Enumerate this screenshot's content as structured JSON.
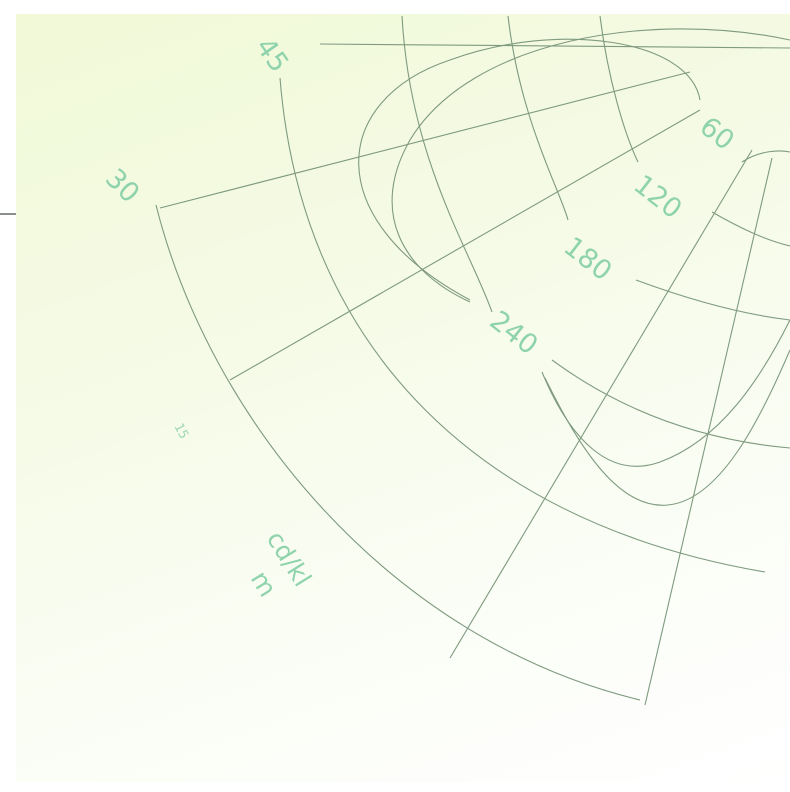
{
  "diagram": {
    "angle_labels": [
      "45",
      "30"
    ],
    "luminance_labels": [
      "60",
      "120",
      "180",
      "240"
    ],
    "unit_label_line1": "cd/kl",
    "unit_label_line2": "m",
    "small_mark": "15",
    "colors": {
      "label": "#8fd3ac",
      "grid_line": "#7f9a7f",
      "background_tint": "#f1f9d7"
    }
  }
}
